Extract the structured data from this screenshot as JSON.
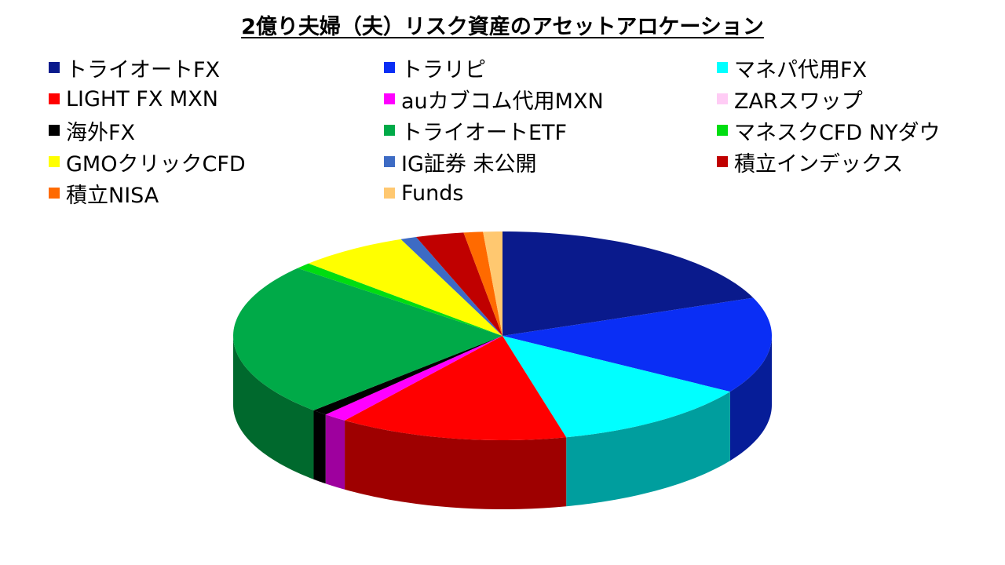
{
  "chart_data": {
    "type": "pie",
    "style": "3d",
    "title": "2億り夫婦（夫）リスク資産のアセットアロケーション",
    "legend_position": "top",
    "slices": [
      {
        "label": "トライオートFX",
        "value": 19.8,
        "color": "#0A1A8C"
      },
      {
        "label": "トラリピ",
        "value": 15.5,
        "color": "#0A2EF5"
      },
      {
        "label": "マネパ代用FX",
        "value": 12.7,
        "color": "#00FFFF"
      },
      {
        "label": "LIGHT FX MXN",
        "value": 14.3,
        "color": "#FF0000"
      },
      {
        "label": "auカブコム代用MXN",
        "value": 1.5,
        "color": "#FF00FF"
      },
      {
        "label": "ZARスワップ",
        "value": 0.0,
        "color": "#FFCCF5"
      },
      {
        "label": "海外FX",
        "value": 1.0,
        "color": "#000000"
      },
      {
        "label": "トライオートETF",
        "value": 24.8,
        "color": "#00AA48"
      },
      {
        "label": "マネスクCFD NYダウ",
        "value": 1.0,
        "color": "#00DD11"
      },
      {
        "label": "GMOクリックCFD",
        "value": 6.9,
        "color": "#FFFF00"
      },
      {
        "label": "IG証券 未公開",
        "value": 1.0,
        "color": "#3D6BC4"
      },
      {
        "label": "積立インデックス",
        "value": 3.0,
        "color": "#C00000"
      },
      {
        "label": "積立NISA",
        "value": 1.2,
        "color": "#FF6A00"
      },
      {
        "label": "Funds",
        "value": 1.2,
        "color": "#FFC870"
      }
    ]
  }
}
